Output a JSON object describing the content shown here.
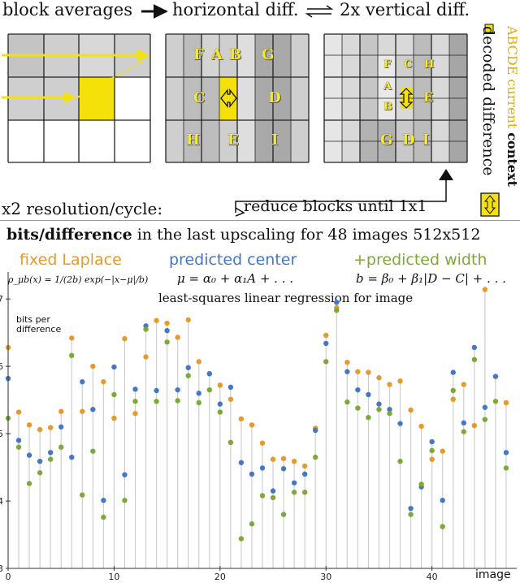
{
  "diagram": {
    "label_block_averages": "block averages",
    "label_horizontal_diff": "horizontal diff.",
    "label_vertical_diff": "2x vertical diff.",
    "label_resolution": "x2 resolution/cycle:",
    "label_reduce": "reduce blocks until 1x1",
    "label_decoded_difference": "decoded difference",
    "label_current_prefix": "ABCDE current ",
    "label_current_context": "context",
    "letters_panel2": [
      "F",
      "A",
      "B",
      "G",
      "C",
      "D",
      "H",
      "E",
      "I"
    ],
    "letters_panel3": [
      "F",
      "C",
      "H",
      "A",
      "B",
      "E",
      "G",
      "D",
      "I"
    ],
    "colors": {
      "highlight": "#f5e10a",
      "arrow": "#111111",
      "grid_line": "#222222"
    }
  },
  "header": {
    "title_bold": "bits/difference",
    "title_rest": " in the last upscaling for 48 images 512x512"
  },
  "legend": {
    "fixed": {
      "label": "fixed Laplace",
      "color": "#e59a2a"
    },
    "center": {
      "label": "predicted center",
      "color": "#4677c4"
    },
    "width": {
      "label": "+predicted width",
      "color": "#7fa83a"
    }
  },
  "formulas": {
    "laplace": "ρ_μb(x) = 1/(2b) exp(−|x−μ|/b)",
    "center": "μ = α₀ + α₁A + . . .",
    "width": "b = β₀ + β₁|D − C| + . . .",
    "regression": "least-squares linear regression for image"
  },
  "chart_data": {
    "type": "scatter",
    "title": "bits/difference in the last upscaling for 48 images 512x512",
    "ylabel": "bits per difference",
    "xlabel": "image",
    "xlim": [
      0,
      48
    ],
    "ylim": [
      3,
      7.4
    ],
    "x_ticks": [
      0,
      10,
      20,
      30,
      40
    ],
    "y_ticks": [
      3,
      4,
      5,
      6,
      7
    ],
    "grid": false,
    "x": [
      0,
      1,
      2,
      3,
      4,
      5,
      6,
      7,
      8,
      9,
      10,
      11,
      12,
      13,
      14,
      15,
      16,
      17,
      18,
      19,
      20,
      21,
      22,
      23,
      24,
      25,
      26,
      27,
      28,
      29,
      30,
      31,
      32,
      33,
      34,
      35,
      36,
      37,
      38,
      39,
      40,
      41,
      42,
      43,
      44,
      45,
      46,
      47
    ],
    "series": [
      {
        "name": "fixed Laplace",
        "color": "#e59a2a",
        "values": [
          6.28,
          5.32,
          5.13,
          5.06,
          5.09,
          5.33,
          6.42,
          5.33,
          6.0,
          5.77,
          5.23,
          6.41,
          5.3,
          6.14,
          6.68,
          6.64,
          6.43,
          6.69,
          6.07,
          5.89,
          5.72,
          5.51,
          5.22,
          5.13,
          4.86,
          4.62,
          4.63,
          4.59,
          4.52,
          5.08,
          6.46,
          6.87,
          6.06,
          5.92,
          5.91,
          5.83,
          5.73,
          5.78,
          5.35,
          5.11,
          4.62,
          4.74,
          5.51,
          5.73,
          5.12,
          7.14,
          5.85,
          5.46
        ]
      },
      {
        "name": "predicted center",
        "color": "#4677c4",
        "values": [
          5.82,
          4.9,
          4.68,
          4.59,
          4.72,
          5.1,
          4.65,
          5.77,
          5.36,
          4.01,
          5.99,
          4.39,
          5.66,
          6.6,
          5.64,
          6.53,
          5.65,
          5.98,
          5.6,
          5.89,
          5.44,
          5.69,
          4.57,
          4.4,
          4.49,
          4.15,
          4.48,
          4.27,
          4.4,
          5.05,
          6.34,
          6.95,
          5.92,
          5.65,
          5.58,
          5.44,
          5.36,
          5.15,
          3.89,
          4.21,
          4.88,
          4.01,
          5.91,
          5.16,
          6.28,
          5.39,
          5.85,
          4.72
        ]
      },
      {
        "name": "+predicted width",
        "color": "#7fa83a",
        "values": [
          5.23,
          4.8,
          4.26,
          4.42,
          4.62,
          4.8,
          6.16,
          4.09,
          4.74,
          3.76,
          5.58,
          4.01,
          5.48,
          6.55,
          5.48,
          6.36,
          5.49,
          5.86,
          5.46,
          5.65,
          5.32,
          4.87,
          3.44,
          3.66,
          4.08,
          4.05,
          3.8,
          4.13,
          4.13,
          4.65,
          6.07,
          6.83,
          5.47,
          5.38,
          5.24,
          5.36,
          5.3,
          4.59,
          3.8,
          4.25,
          4.75,
          3.62,
          5.64,
          5.03,
          6.1,
          5.21,
          5.48,
          4.49
        ]
      }
    ]
  }
}
